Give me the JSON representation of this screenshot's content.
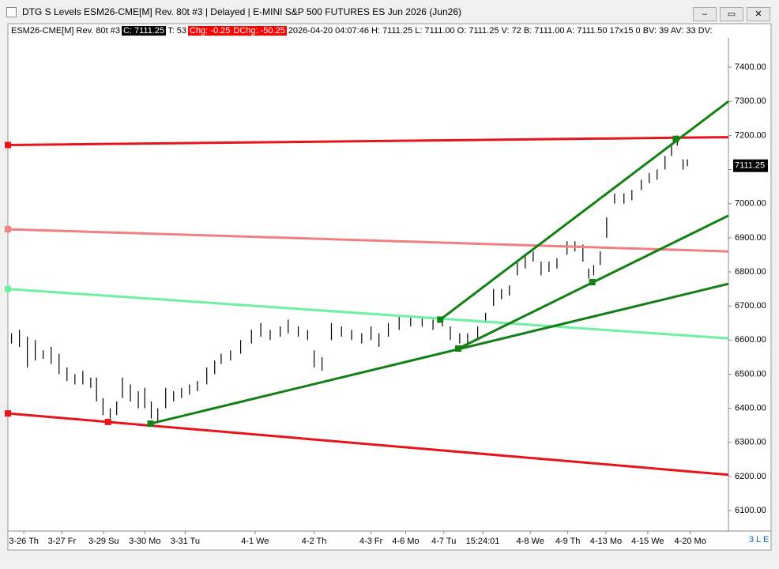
{
  "window": {
    "title": "DTG S Levels ESM26-CME[M]  Rev. 80t #3 | Delayed | E-MINI S&P 500 FUTURES ES Jun 2026 (Jun26)",
    "buttons": [
      "–",
      "▭",
      "✕"
    ]
  },
  "info_bar": [
    "ESM26-CME[M]  Rev. 80t #3",
    "C: 7111.25",
    "T: 53",
    "Chg: -0.25",
    "DChg: -50.25",
    "2026-04-20 04:07:46 H: 7111.25 L: 7111.00 O: 7111.25 V: 72 B: 7111.00 A: 7111.50 17x15 0 BV: 39 AV: 33 DV: "
  ],
  "status": "3 L E",
  "chart_data": {
    "type": "ohlc",
    "xlim": [
      0,
      100
    ],
    "ylim": [
      6040,
      7486
    ],
    "yticks": [
      {
        "value": 6100,
        "label": "6100.00"
      },
      {
        "value": 6200,
        "label": "6200.00"
      },
      {
        "value": 6300,
        "label": "6300.00"
      },
      {
        "value": 6400,
        "label": "6400.00"
      },
      {
        "value": 6500,
        "label": "6500.00"
      },
      {
        "value": 6600,
        "label": "6600.00"
      },
      {
        "value": 6700,
        "label": "6700.00"
      },
      {
        "value": 6800,
        "label": "6800.00"
      },
      {
        "value": 6900,
        "label": "6900.00"
      },
      {
        "value": 7000,
        "label": "7000.00"
      },
      {
        "value": 7100,
        "label": "7100.00"
      },
      {
        "value": 7200,
        "label": "7200.00"
      },
      {
        "value": 7300,
        "label": "7300.00"
      },
      {
        "value": 7400,
        "label": "7400.00"
      }
    ],
    "xticks": [
      {
        "value": 2.2,
        "label": "3-26 Th"
      },
      {
        "value": 7.5,
        "label": "3-27 Fr"
      },
      {
        "value": 13.3,
        "label": "3-29 Su"
      },
      {
        "value": 19,
        "label": "3-30 Mo"
      },
      {
        "value": 24.6,
        "label": "3-31 Tu"
      },
      {
        "value": 34.3,
        "label": "4-1 We"
      },
      {
        "value": 42.5,
        "label": "4-2 Th"
      },
      {
        "value": 50.4,
        "label": "4-3 Fr"
      },
      {
        "value": 55.2,
        "label": "4-6 Mo"
      },
      {
        "value": 60.5,
        "label": "4-7 Tu"
      },
      {
        "value": 65.9,
        "label": "15:24:01"
      },
      {
        "value": 72.5,
        "label": "4-8 We"
      },
      {
        "value": 77.7,
        "label": "4-9 Th"
      },
      {
        "value": 83,
        "label": "4-13 Mo"
      },
      {
        "value": 88.8,
        "label": "4-15 We"
      },
      {
        "value": 94.7,
        "label": "4-20 Mo"
      }
    ],
    "x": [
      0.5,
      1.6,
      2.7,
      3.8,
      4.9,
      6.0,
      7.1,
      8.2,
      9.3,
      10.4,
      11.5,
      12.3,
      13.2,
      14.2,
      15.1,
      15.9,
      17.0,
      18.1,
      19.0,
      19.9,
      20.8,
      21.9,
      23.0,
      24.1,
      25.2,
      26.3,
      27.6,
      28.7,
      29.6,
      30.9,
      32.3,
      33.8,
      35.1,
      36.4,
      37.8,
      38.9,
      40.3,
      41.6,
      42.5,
      43.6,
      44.9,
      46.3,
      47.7,
      49.1,
      50.4,
      51.5,
      52.8,
      54.3,
      55.9,
      57.5,
      59.0,
      60.3,
      61.4,
      62.7,
      63.8,
      65.2,
      66.3,
      67.4,
      68.5,
      69.6,
      70.7,
      71.8,
      72.9,
      74.0,
      75.1,
      76.2,
      77.6,
      78.7,
      79.8,
      80.6,
      81.3,
      82.2,
      83.1,
      84.2,
      85.5,
      86.6,
      87.9,
      89.0,
      90.1,
      91.2,
      92.1,
      92.9,
      93.7,
      94.3
    ],
    "high": [
      6620,
      6630,
      6610,
      6600,
      6570,
      6580,
      6560,
      6520,
      6500,
      6510,
      6490,
      6490,
      6430,
      6400,
      6420,
      6490,
      6470,
      6450,
      6460,
      6420,
      6400,
      6460,
      6450,
      6460,
      6470,
      6480,
      6520,
      6540,
      6560,
      6570,
      6600,
      6630,
      6650,
      6630,
      6640,
      6660,
      6640,
      6630,
      6570,
      6550,
      6650,
      6640,
      6630,
      6620,
      6640,
      6620,
      6650,
      6670,
      6670,
      6670,
      6660,
      6660,
      6640,
      6620,
      6620,
      6640,
      6680,
      6750,
      6750,
      6760,
      6830,
      6850,
      6860,
      6830,
      6830,
      6840,
      6890,
      6890,
      6880,
      6810,
      6820,
      6860,
      6960,
      7030,
      7030,
      7040,
      7070,
      7090,
      7100,
      7140,
      7170,
      7200,
      7130,
      7130
    ],
    "low": [
      6590,
      6580,
      6520,
      6540,
      6545,
      6530,
      6500,
      6480,
      6470,
      6470,
      6460,
      6420,
      6380,
      6370,
      6380,
      6430,
      6420,
      6400,
      6400,
      6370,
      6360,
      6400,
      6420,
      6430,
      6440,
      6450,
      6470,
      6500,
      6530,
      6540,
      6560,
      6590,
      6610,
      6600,
      6610,
      6620,
      6610,
      6600,
      6520,
      6510,
      6600,
      6610,
      6600,
      6590,
      6600,
      6580,
      6610,
      6630,
      6640,
      6640,
      6630,
      6640,
      6600,
      6590,
      6580,
      6600,
      6650,
      6700,
      6720,
      6730,
      6790,
      6810,
      6830,
      6790,
      6800,
      6810,
      6850,
      6860,
      6830,
      6780,
      6790,
      6820,
      6900,
      7000,
      7000,
      7010,
      7040,
      7060,
      7070,
      7100,
      7140,
      7170,
      7100,
      7110
    ],
    "bar_color": "#000000",
    "last_price": 7111.25,
    "lines": [
      {
        "color": "#e8141c",
        "x": [
          0,
          100
        ],
        "values": [
          7172,
          7195
        ]
      },
      {
        "color": "#f08080",
        "x": [
          0,
          100
        ],
        "values": [
          6925,
          6860
        ]
      },
      {
        "color": "#6ff0a0",
        "x": [
          0,
          100
        ],
        "values": [
          6750,
          6605
        ]
      },
      {
        "color": "#e8141c",
        "x": [
          0,
          100
        ],
        "values": [
          6385,
          6205
        ]
      },
      {
        "color": "#128012",
        "x": [
          19.8,
          100
        ],
        "values": [
          6355,
          6765
        ]
      },
      {
        "color": "#128012",
        "x": [
          62.5,
          100
        ],
        "values": [
          6575,
          6965
        ]
      },
      {
        "color": "#128012",
        "x": [
          60,
          100
        ],
        "values": [
          6660,
          7300
        ]
      }
    ],
    "markers": {
      "x": [
        0,
        0,
        0,
        0,
        13.9,
        19.8,
        60,
        62.5,
        81.1,
        92.7
      ],
      "values": [
        7172,
        6925,
        6750,
        6385,
        6360,
        6355,
        6660,
        6575,
        6770,
        7190
      ],
      "colors": [
        "#e8141c",
        "#f08080",
        "#6ff0a0",
        "#e8141c",
        "#e8141c",
        "#128012",
        "#128012",
        "#128012",
        "#128012",
        "#128012"
      ]
    }
  }
}
